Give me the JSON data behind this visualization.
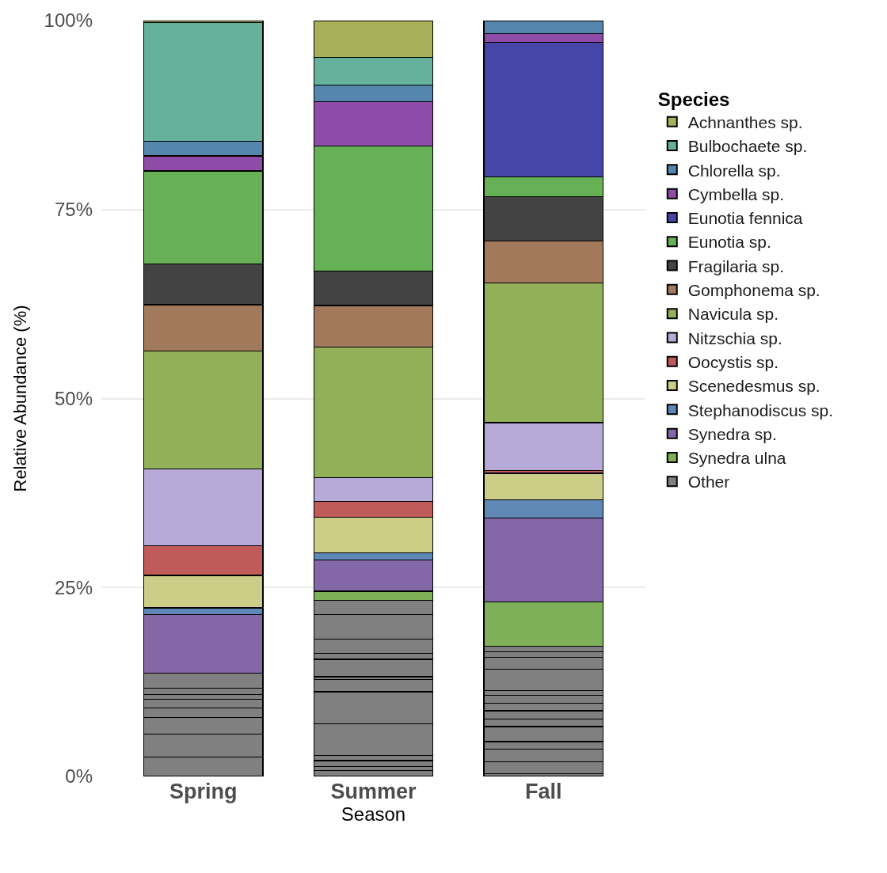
{
  "chart_data": {
    "type": "bar",
    "stacked": true,
    "xlabel": "Season",
    "ylabel": "Relative Abundance (%)",
    "legend_title": "Species",
    "legend": "right",
    "grid": "y",
    "categories": [
      "Spring",
      "Summer",
      "Fall"
    ],
    "ylim": [
      0,
      100
    ],
    "yticks": [
      {
        "value": 0,
        "label": "0%"
      },
      {
        "value": 25,
        "label": "25%"
      },
      {
        "value": 50,
        "label": "50%"
      },
      {
        "value": 75,
        "label": "75%"
      },
      {
        "value": 100,
        "label": "100%"
      }
    ],
    "series": [
      {
        "name": "Other",
        "color": "#808080",
        "values": [
          2.6,
          0.8,
          0.4
        ]
      },
      {
        "color": "#808080",
        "values": [
          3.0,
          0.5,
          1.5
        ]
      },
      {
        "color": "#808080",
        "values": [
          2.2,
          0.8,
          1.7
        ]
      },
      {
        "color": "#808080",
        "values": [
          1.3,
          0.7,
          1.0
        ]
      },
      {
        "color": "#808080",
        "values": [
          1.1,
          4.2,
          2.0
        ]
      },
      {
        "color": "#808080",
        "values": [
          0.6,
          4.2,
          1.0
        ]
      },
      {
        "color": "#808080",
        "values": [
          0.9,
          1.6,
          1.1
        ]
      },
      {
        "color": "#808080",
        "values": [
          2.0,
          0.4,
          1.0
        ]
      },
      {
        "color": "#808080",
        "values": [
          null,
          2.3,
          1.0
        ]
      },
      {
        "color": "#808080",
        "values": [
          null,
          0.8,
          0.7
        ]
      },
      {
        "color": "#808080",
        "values": [
          null,
          1.9,
          2.8
        ]
      },
      {
        "color": "#808080",
        "values": [
          null,
          3.2,
          1.6
        ]
      },
      {
        "color": "#808080",
        "values": [
          null,
          1.9,
          0.7
        ]
      },
      {
        "color": "#808080",
        "values": [
          null,
          null,
          0.7
        ]
      },
      {
        "name": "Synedra ulna",
        "color": "#7eb05a",
        "values": [
          null,
          1.2,
          5.9
        ]
      },
      {
        "name": "Synedra sp.",
        "color": "#8467a6",
        "values": [
          7.7,
          4.1,
          11.1
        ]
      },
      {
        "name": "Stephanodiscus sp.",
        "color": "#5f88b6",
        "values": [
          0.9,
          1.0,
          2.4
        ]
      },
      {
        "name": "Scenedesmus sp.",
        "color": "#cccd86",
        "values": [
          4.3,
          4.7,
          3.5
        ]
      },
      {
        "name": "Oocystis sp.",
        "color": "#c05b59",
        "values": [
          3.9,
          2.1,
          0.4
        ]
      },
      {
        "name": "Nitzschia sp.",
        "color": "#b8aad8",
        "values": [
          10.2,
          3.1,
          6.3
        ]
      },
      {
        "name": "Navicula sp.",
        "color": "#91b057",
        "values": [
          15.6,
          17.3,
          18.5
        ]
      },
      {
        "name": "Gomphonema sp.",
        "color": "#a27a5b",
        "values": [
          6.1,
          5.5,
          5.5
        ]
      },
      {
        "name": "Fragilaria sp.",
        "color": "#434343",
        "values": [
          5.4,
          4.6,
          5.9
        ]
      },
      {
        "name": "Eunotia sp.",
        "color": "#66b055",
        "values": [
          12.3,
          16.5,
          2.6
        ]
      },
      {
        "name": "Eunotia fennica",
        "color": "#4646a8",
        "values": [
          null,
          null,
          17.8
        ]
      },
      {
        "name": "Cymbella sp.",
        "color": "#8e4ba8",
        "values": [
          2.0,
          5.9,
          1.2
        ]
      },
      {
        "name": "Chlorella sp.",
        "color": "#5586ad",
        "values": [
          1.9,
          2.2,
          1.7
        ]
      },
      {
        "name": "Bulbochaete sp.",
        "color": "#66b19b",
        "values": [
          15.7,
          3.6,
          null
        ]
      },
      {
        "name": "Achnanthes sp.",
        "color": "#a8b158",
        "values": [
          0.3,
          4.9,
          null
        ]
      }
    ]
  }
}
